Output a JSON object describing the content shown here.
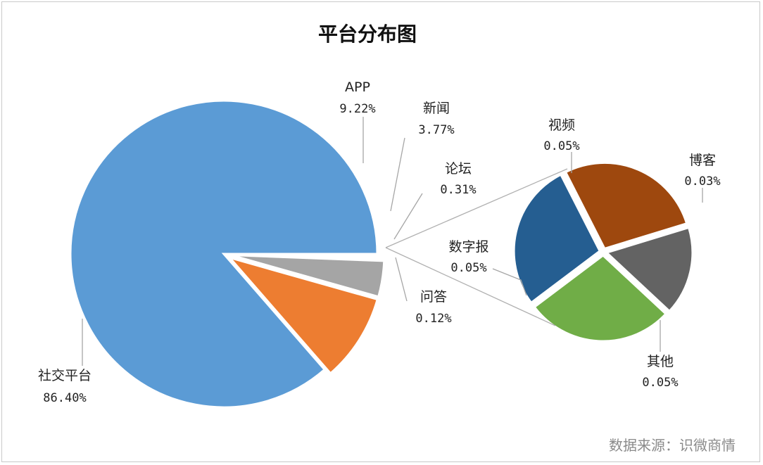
{
  "chart_data": {
    "type": "pie",
    "title": "平台分布图",
    "source": "数据来源：识微商情",
    "slices": [
      {
        "name": "社交平台",
        "value_label": "86.40%",
        "value": 86.4,
        "color": "#5b9bd5"
      },
      {
        "name": "APP",
        "value_label": "9.22%",
        "value": 9.22,
        "color": "#ed7d31"
      },
      {
        "name": "新闻",
        "value_label": "3.77%",
        "value": 3.77,
        "color": "#a5a5a5"
      },
      {
        "name": "论坛",
        "value_label": "0.31%",
        "value": 0.31,
        "group": "other"
      },
      {
        "name": "问答",
        "value_label": "0.12%",
        "value": 0.12,
        "group": "other"
      }
    ],
    "subpie": {
      "slices": [
        {
          "name": "视频",
          "value_label": "0.05%",
          "value": 0.05,
          "color": "#9e480e"
        },
        {
          "name": "博客",
          "value_label": "0.03%",
          "value": 0.03,
          "color": "#636363"
        },
        {
          "name": "其他",
          "value_label": "0.05%",
          "value": 0.05,
          "color": "#70ad47"
        },
        {
          "name": "数字报",
          "value_label": "0.05%",
          "value": 0.05,
          "color": "#255e91"
        }
      ]
    }
  }
}
